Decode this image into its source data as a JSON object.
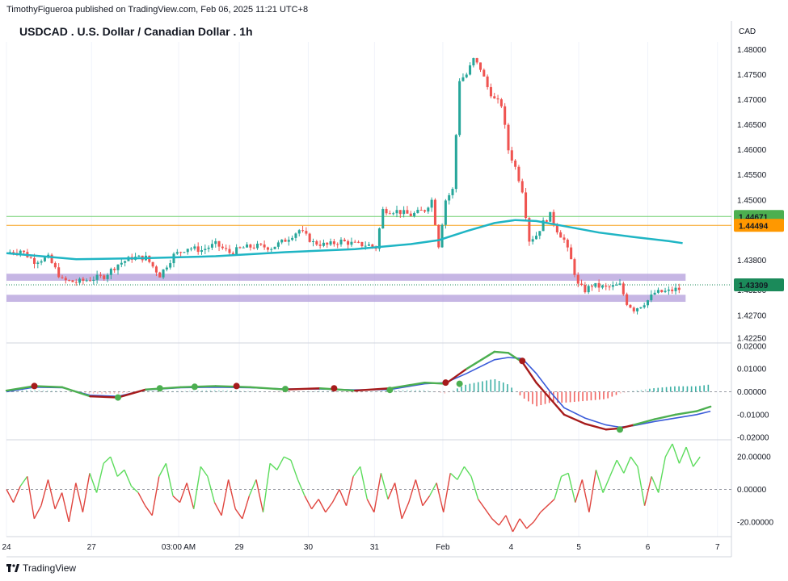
{
  "header": {
    "publisher": "TimothyFigueroa published on TradingView.com, Feb 06, 2025 11:21 UTC+8",
    "title": "USDCAD . U.S. Dollar / Canadian Dollar . 1h"
  },
  "footer": {
    "brand": "TradingView"
  },
  "colors": {
    "up": "#26a69a",
    "down": "#ef5350",
    "ema": "#1fb5c4",
    "green_line": "#6fcf6f",
    "orange_line": "#f7a21b",
    "zone": "#b39ddb",
    "badge_green": "#4caf50",
    "badge_orange": "#ff9800",
    "badge_teal": "#1b8a5a",
    "wt1": "#4caf50",
    "wt2": "#3a5bd9",
    "wt_down": "#a61b1b",
    "rsi_up": "#5ddc5d",
    "rsi_down": "#e0453f"
  },
  "chart_data": [
    {
      "type": "candlestick",
      "title": "USDCAD . U.S. Dollar / Canadian Dollar . 1h",
      "currency_label": "CAD",
      "y_ticks": [
        "1.48000",
        "1.47500",
        "1.47000",
        "1.46500",
        "1.46000",
        "1.45500",
        "1.45000",
        "1.43800",
        "1.43200",
        "1.42700",
        "1.42250"
      ],
      "y_tick_values": [
        1.48,
        1.475,
        1.47,
        1.465,
        1.46,
        1.455,
        1.45,
        1.438,
        1.432,
        1.427,
        1.4225
      ],
      "ylim": [
        1.4215,
        1.4815
      ],
      "x_ticks": [
        "24",
        "27",
        "03:00 AM",
        "29",
        "30",
        "31",
        "Feb",
        "4",
        "5",
        "6",
        "7"
      ],
      "x_tick_positions": [
        0,
        12.2,
        24.7,
        33.4,
        43.3,
        52.8,
        62.6,
        72.4,
        82.1,
        92,
        102
      ],
      "horizontal_lines": [
        {
          "value": 1.44671,
          "label": "1.44671",
          "color": "#6fcf6f"
        },
        {
          "value": 1.44494,
          "label": "1.44494",
          "color": "#f7a21b"
        }
      ],
      "last_price": {
        "value": 1.43309,
        "label": "1.43309"
      },
      "zones": [
        {
          "from": 1.4339,
          "to": 1.4353
        },
        {
          "from": 1.4297,
          "to": 1.4311
        }
      ],
      "ema": [
        [
          0,
          1.4394
        ],
        [
          10,
          1.4382
        ],
        [
          20,
          1.4384
        ],
        [
          30,
          1.4388
        ],
        [
          40,
          1.4396
        ],
        [
          50,
          1.4402
        ],
        [
          58,
          1.4412
        ],
        [
          62,
          1.442
        ],
        [
          66,
          1.4438
        ],
        [
          70,
          1.4454
        ],
        [
          73,
          1.446
        ],
        [
          76,
          1.4458
        ],
        [
          80,
          1.4448
        ],
        [
          85,
          1.4435
        ],
        [
          90,
          1.4426
        ],
        [
          95,
          1.4418
        ],
        [
          97,
          1.4414
        ]
      ],
      "price_path": [
        [
          0,
          1.4395
        ],
        [
          2,
          1.44
        ],
        [
          4,
          1.4378
        ],
        [
          6,
          1.4385
        ],
        [
          8,
          1.434
        ],
        [
          10,
          1.4336
        ],
        [
          12,
          1.4342
        ],
        [
          14,
          1.4348
        ],
        [
          16,
          1.4372
        ],
        [
          18,
          1.4385
        ],
        [
          20,
          1.4385
        ],
        [
          22,
          1.435
        ],
        [
          24,
          1.439
        ],
        [
          26,
          1.4405
        ],
        [
          28,
          1.44
        ],
        [
          30,
          1.4412
        ],
        [
          32,
          1.4395
        ],
        [
          34,
          1.4405
        ],
        [
          36,
          1.4408
        ],
        [
          38,
          1.4405
        ],
        [
          40,
          1.442
        ],
        [
          42,
          1.444
        ],
        [
          44,
          1.4415
        ],
        [
          46,
          1.441
        ],
        [
          48,
          1.4418
        ],
        [
          50,
          1.4412
        ],
        [
          52,
          1.441
        ],
        [
          53,
          1.4405
        ],
        [
          54,
          1.448
        ],
        [
          56,
          1.4478
        ],
        [
          58,
          1.447
        ],
        [
          60,
          1.448
        ],
        [
          61,
          1.45
        ],
        [
          62,
          1.441
        ],
        [
          63,
          1.45
        ],
        [
          64,
          1.452
        ],
        [
          65,
          1.474
        ],
        [
          66,
          1.475
        ],
        [
          67,
          1.478
        ],
        [
          68,
          1.4762
        ],
        [
          69,
          1.4725
        ],
        [
          70,
          1.47
        ],
        [
          71,
          1.469
        ],
        [
          72,
          1.46
        ],
        [
          73,
          1.4565
        ],
        [
          74,
          1.452
        ],
        [
          75,
          1.442
        ],
        [
          76,
          1.443
        ],
        [
          77,
          1.4455
        ],
        [
          78,
          1.447
        ],
        [
          79,
          1.444
        ],
        [
          80,
          1.442
        ],
        [
          81,
          1.438
        ],
        [
          82,
          1.433
        ],
        [
          83,
          1.432
        ],
        [
          84,
          1.433
        ],
        [
          86,
          1.4325
        ],
        [
          88,
          1.433
        ],
        [
          89,
          1.4295
        ],
        [
          90,
          1.4282
        ],
        [
          91,
          1.429
        ],
        [
          92,
          1.43
        ],
        [
          93,
          1.4315
        ],
        [
          95,
          1.4318
        ],
        [
          96,
          1.4322
        ]
      ],
      "x_max": 104
    },
    {
      "type": "line",
      "name": "wavetrend",
      "y_ticks": [
        "0.02000",
        "0.01000",
        "0.00000",
        "-0.01000",
        "-0.02000"
      ],
      "y_tick_values": [
        0.02,
        0.01,
        0,
        -0.01,
        -0.02
      ],
      "ylim": [
        -0.021,
        0.021
      ],
      "wt1": [
        [
          0,
          0.0005
        ],
        [
          4,
          0.0025
        ],
        [
          8,
          0.002
        ],
        [
          12,
          -0.002
        ],
        [
          16,
          -0.0025
        ],
        [
          20,
          0.001
        ],
        [
          25,
          0.002
        ],
        [
          30,
          0.0025
        ],
        [
          35,
          0.002
        ],
        [
          40,
          0.001
        ],
        [
          45,
          0.0015
        ],
        [
          50,
          0.0005
        ],
        [
          55,
          0.0015
        ],
        [
          60,
          0.004
        ],
        [
          63,
          0.0035
        ],
        [
          66,
          0.01
        ],
        [
          70,
          0.0175
        ],
        [
          72,
          0.017
        ],
        [
          74,
          0.013
        ],
        [
          76,
          0.004
        ],
        [
          78,
          -0.003
        ],
        [
          80,
          -0.01
        ],
        [
          83,
          -0.014
        ],
        [
          86,
          -0.0165
        ],
        [
          88,
          -0.016
        ],
        [
          90,
          -0.0145
        ],
        [
          93,
          -0.012
        ],
        [
          96,
          -0.01
        ],
        [
          99,
          -0.0085
        ],
        [
          101,
          -0.0065
        ]
      ],
      "wt2": [
        [
          0,
          0.0
        ],
        [
          4,
          0.002
        ],
        [
          8,
          0.0018
        ],
        [
          12,
          -0.0015
        ],
        [
          16,
          -0.002
        ],
        [
          20,
          0.0008
        ],
        [
          25,
          0.0018
        ],
        [
          30,
          0.002
        ],
        [
          35,
          0.0018
        ],
        [
          40,
          0.0012
        ],
        [
          45,
          0.0012
        ],
        [
          50,
          0.0008
        ],
        [
          55,
          0.001
        ],
        [
          60,
          0.0035
        ],
        [
          63,
          0.004
        ],
        [
          66,
          0.008
        ],
        [
          70,
          0.014
        ],
        [
          72,
          0.015
        ],
        [
          74,
          0.0145
        ],
        [
          76,
          0.008
        ],
        [
          78,
          0.0
        ],
        [
          80,
          -0.007
        ],
        [
          83,
          -0.0115
        ],
        [
          86,
          -0.0145
        ],
        [
          88,
          -0.0155
        ],
        [
          90,
          -0.0148
        ],
        [
          93,
          -0.013
        ],
        [
          96,
          -0.0115
        ],
        [
          99,
          -0.01
        ],
        [
          101,
          -0.0085
        ]
      ],
      "dots": [
        [
          4,
          0.0025,
          "down"
        ],
        [
          16,
          -0.0025,
          "up"
        ],
        [
          22,
          0.0015,
          "up"
        ],
        [
          27,
          0.0022,
          "up"
        ],
        [
          33,
          0.0025,
          "down"
        ],
        [
          40,
          0.0012,
          "up"
        ],
        [
          47,
          0.0015,
          "down"
        ],
        [
          55,
          0.0008,
          "up"
        ],
        [
          63,
          0.004,
          "down"
        ],
        [
          65,
          0.0035,
          "up"
        ],
        [
          74,
          0.0135,
          "down"
        ],
        [
          88,
          -0.0165,
          "up"
        ]
      ],
      "histogram_up_from": 86
    },
    {
      "type": "line",
      "name": "momentum",
      "y_ticks": [
        "20.00000",
        "0.00000",
        "-20.00000"
      ],
      "y_tick_values": [
        20,
        0,
        -20
      ],
      "ylim": [
        -29,
        30
      ],
      "values": [
        [
          0,
          0
        ],
        [
          1,
          -8
        ],
        [
          2,
          2
        ],
        [
          3,
          8
        ],
        [
          4,
          -18
        ],
        [
          5,
          -10
        ],
        [
          6,
          6
        ],
        [
          7,
          -12
        ],
        [
          8,
          -2
        ],
        [
          9,
          -20
        ],
        [
          10,
          4
        ],
        [
          11,
          -14
        ],
        [
          12,
          10
        ],
        [
          13,
          -2
        ],
        [
          14,
          16
        ],
        [
          15,
          20
        ],
        [
          16,
          8
        ],
        [
          17,
          12
        ],
        [
          18,
          2
        ],
        [
          19,
          -2
        ],
        [
          20,
          -10
        ],
        [
          21,
          -16
        ],
        [
          22,
          8
        ],
        [
          23,
          16
        ],
        [
          24,
          -4
        ],
        [
          25,
          -8
        ],
        [
          26,
          4
        ],
        [
          27,
          -12
        ],
        [
          28,
          14
        ],
        [
          29,
          8
        ],
        [
          30,
          -8
        ],
        [
          31,
          -16
        ],
        [
          32,
          6
        ],
        [
          33,
          -12
        ],
        [
          34,
          -18
        ],
        [
          35,
          -4
        ],
        [
          36,
          6
        ],
        [
          37,
          -14
        ],
        [
          38,
          16
        ],
        [
          39,
          12
        ],
        [
          40,
          20
        ],
        [
          41,
          18
        ],
        [
          42,
          6
        ],
        [
          43,
          -4
        ],
        [
          44,
          -12
        ],
        [
          45,
          -6
        ],
        [
          46,
          -14
        ],
        [
          47,
          -8
        ],
        [
          48,
          0
        ],
        [
          49,
          -10
        ],
        [
          50,
          8
        ],
        [
          51,
          14
        ],
        [
          52,
          -6
        ],
        [
          53,
          -14
        ],
        [
          54,
          10
        ],
        [
          55,
          -6
        ],
        [
          56,
          4
        ],
        [
          57,
          -18
        ],
        [
          58,
          -8
        ],
        [
          59,
          6
        ],
        [
          60,
          -10
        ],
        [
          61,
          -4
        ],
        [
          62,
          4
        ],
        [
          63,
          -14
        ],
        [
          64,
          10
        ],
        [
          65,
          6
        ],
        [
          66,
          14
        ],
        [
          67,
          8
        ],
        [
          68,
          -6
        ],
        [
          69,
          -12
        ],
        [
          70,
          -18
        ],
        [
          71,
          -22
        ],
        [
          72,
          -16
        ],
        [
          73,
          -26
        ],
        [
          74,
          -18
        ],
        [
          75,
          -24
        ],
        [
          76,
          -20
        ],
        [
          77,
          -14
        ],
        [
          78,
          -10
        ],
        [
          79,
          -6
        ],
        [
          80,
          8
        ],
        [
          81,
          10
        ],
        [
          82,
          -8
        ],
        [
          83,
          6
        ],
        [
          84,
          -14
        ],
        [
          85,
          12
        ],
        [
          86,
          -2
        ],
        [
          87,
          8
        ],
        [
          88,
          18
        ],
        [
          89,
          10
        ],
        [
          90,
          20
        ],
        [
          91,
          14
        ],
        [
          92,
          -10
        ],
        [
          93,
          8
        ],
        [
          94,
          -2
        ],
        [
          95,
          20
        ],
        [
          96,
          28
        ],
        [
          97,
          16
        ],
        [
          98,
          26
        ],
        [
          99,
          14
        ],
        [
          100,
          20
        ]
      ]
    }
  ]
}
